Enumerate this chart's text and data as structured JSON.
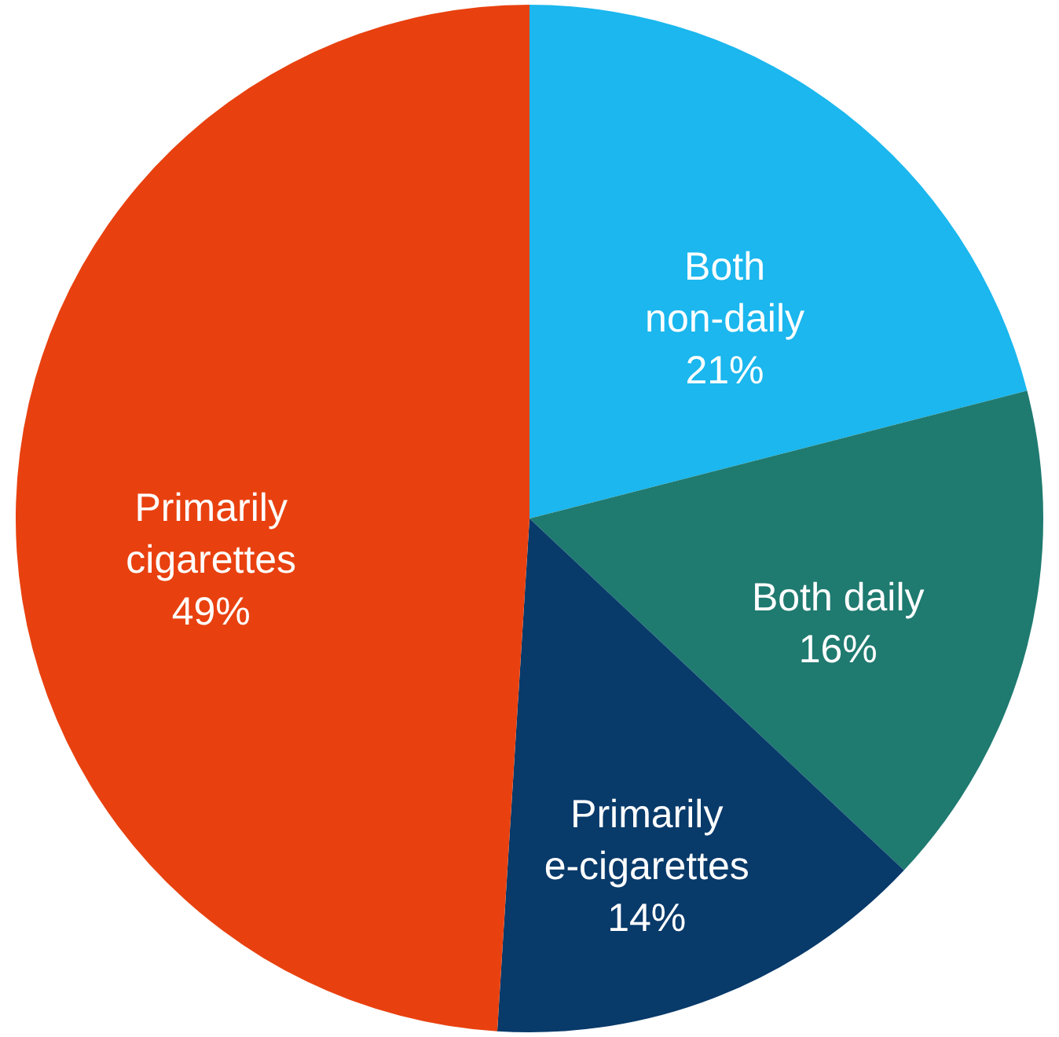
{
  "chart_data": {
    "type": "pie",
    "categories": [
      "Both\nnon-daily",
      "Both daily",
      "Primarily\ne-cigarettes",
      "Primarily\ncigarettes"
    ],
    "values": [
      21,
      16,
      14,
      49
    ],
    "value_labels": [
      "21%",
      "16%",
      "14%",
      "49%"
    ],
    "colors": [
      "#1bb7ee",
      "#1f7a70",
      "#083a6a",
      "#e8410f"
    ]
  }
}
